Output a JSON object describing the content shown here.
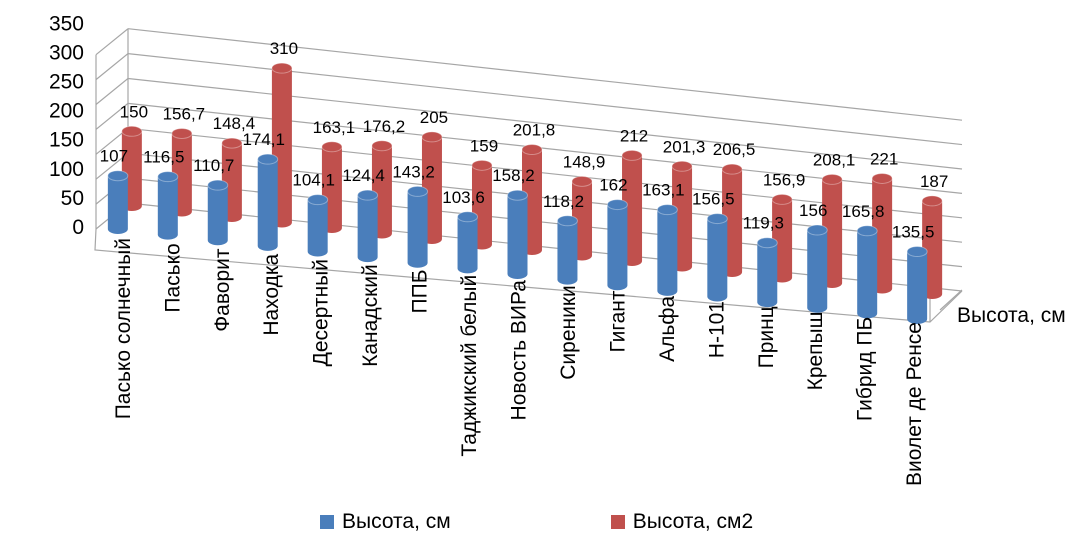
{
  "chart_data": {
    "type": "bar",
    "variant": "3d-clustered-column",
    "categories": [
      "Пасько солнечный",
      "Пасько",
      "Фаворит",
      "Находка",
      "Десертный",
      "Канадский",
      "ППБ",
      "Таджикский белый",
      "Новость ВИРа",
      "Сиреники",
      "Гигант",
      "Альфа",
      "Н-101",
      "Принц",
      "Крепыш",
      "Гибрид ПБ",
      "Виолет де Ренсе"
    ],
    "series": [
      {
        "name": "Высота, см",
        "color": "#4a7ebb",
        "values": [
          107,
          116.5,
          110.7,
          174.1,
          104.1,
          124.4,
          143.2,
          103.6,
          158.2,
          118.2,
          162,
          163.1,
          156.5,
          119.3,
          156,
          165.8,
          135.5
        ],
        "labels": [
          "107",
          "116,5",
          "110,7",
          "174,1",
          "104,1",
          "124,4",
          "143,2",
          "103,6",
          "158,2",
          "118,2",
          "162",
          "163,1",
          "156,5",
          "119,3",
          "156",
          "165,8",
          "135,5"
        ]
      },
      {
        "name": "Высота, см2",
        "color": "#c0504d",
        "values": [
          150,
          156.7,
          148.4,
          310,
          163.1,
          176.2,
          205,
          159,
          201.8,
          148.9,
          212,
          201.3,
          206.5,
          156.9,
          208.1,
          221,
          187
        ],
        "labels": [
          "150",
          "156,7",
          "148,4",
          "310",
          "163,1",
          "176,2",
          "205",
          "159",
          "201,8",
          "148,9",
          "212",
          "201,3",
          "206,5",
          "156,9",
          "208,1",
          "221",
          "187"
        ]
      }
    ],
    "yticks": [
      "0",
      "50",
      "100",
      "150",
      "200",
      "250",
      "300",
      "350"
    ],
    "ylim": [
      0,
      350
    ],
    "depth_axis_label": "Высота, см",
    "grid": true,
    "legend_position": "bottom"
  }
}
